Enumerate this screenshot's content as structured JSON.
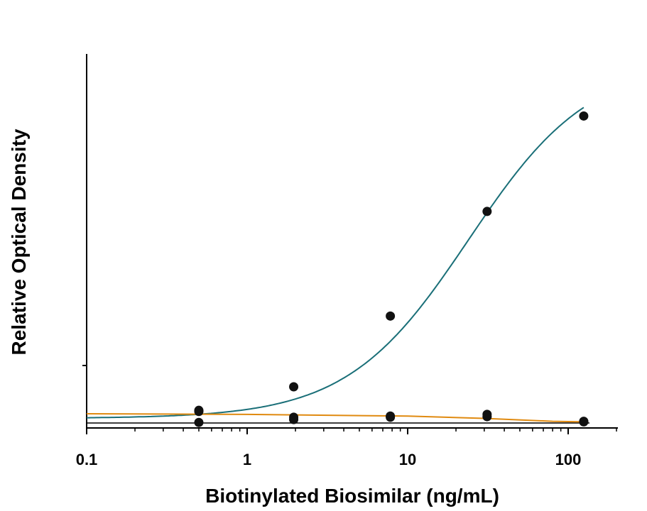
{
  "chart_data": {
    "type": "scatter",
    "title": "",
    "xlabel": "Biotinylated Biosimilar (ng/mL)",
    "ylabel": "Relative Optical Density",
    "x_scale": "log",
    "xlim": [
      0.1,
      200
    ],
    "ylim": [
      0,
      5.3
    ],
    "x_ticks": [
      0.1,
      1,
      10,
      100
    ],
    "x_tick_labels": [
      "0.1",
      "1",
      "10",
      "100"
    ],
    "y_ticks": [
      1
    ],
    "y_tick_labels": [
      ""
    ],
    "grid": false,
    "legend": "none",
    "baseline_y": 0,
    "series": [
      {
        "color": "#1a6f78",
        "x": [
          0.5,
          1.95,
          7.8,
          31.25,
          125
        ],
        "y": [
          0.2,
          0.63,
          1.86,
          3.68,
          5.34
        ],
        "fit_curve": {
          "model": "4PL",
          "bottom": 0.08,
          "top": 6.3,
          "ec50": 24,
          "hill": 1.15
        }
      },
      {
        "color": "#e08a10",
        "x": [
          0.5,
          1.95,
          7.8,
          31.25,
          125
        ],
        "y": [
          0.01,
          0.06,
          0.1,
          0.11,
          0.03
        ],
        "points_extra": [
          {
            "x": 0.5,
            "y": 0.22
          },
          {
            "x": 1.95,
            "y": 0.1
          },
          {
            "x": 7.8,
            "y": 0.12
          },
          {
            "x": 31.25,
            "y": 0.15
          },
          {
            "x": 125,
            "y": 0.02
          }
        ],
        "fit_curve": {
          "model": "linear-interp",
          "x": [
            0.1,
            1,
            10,
            30,
            80,
            125
          ],
          "y": [
            0.16,
            0.15,
            0.12,
            0.08,
            0.03,
            0.02
          ]
        }
      }
    ]
  }
}
